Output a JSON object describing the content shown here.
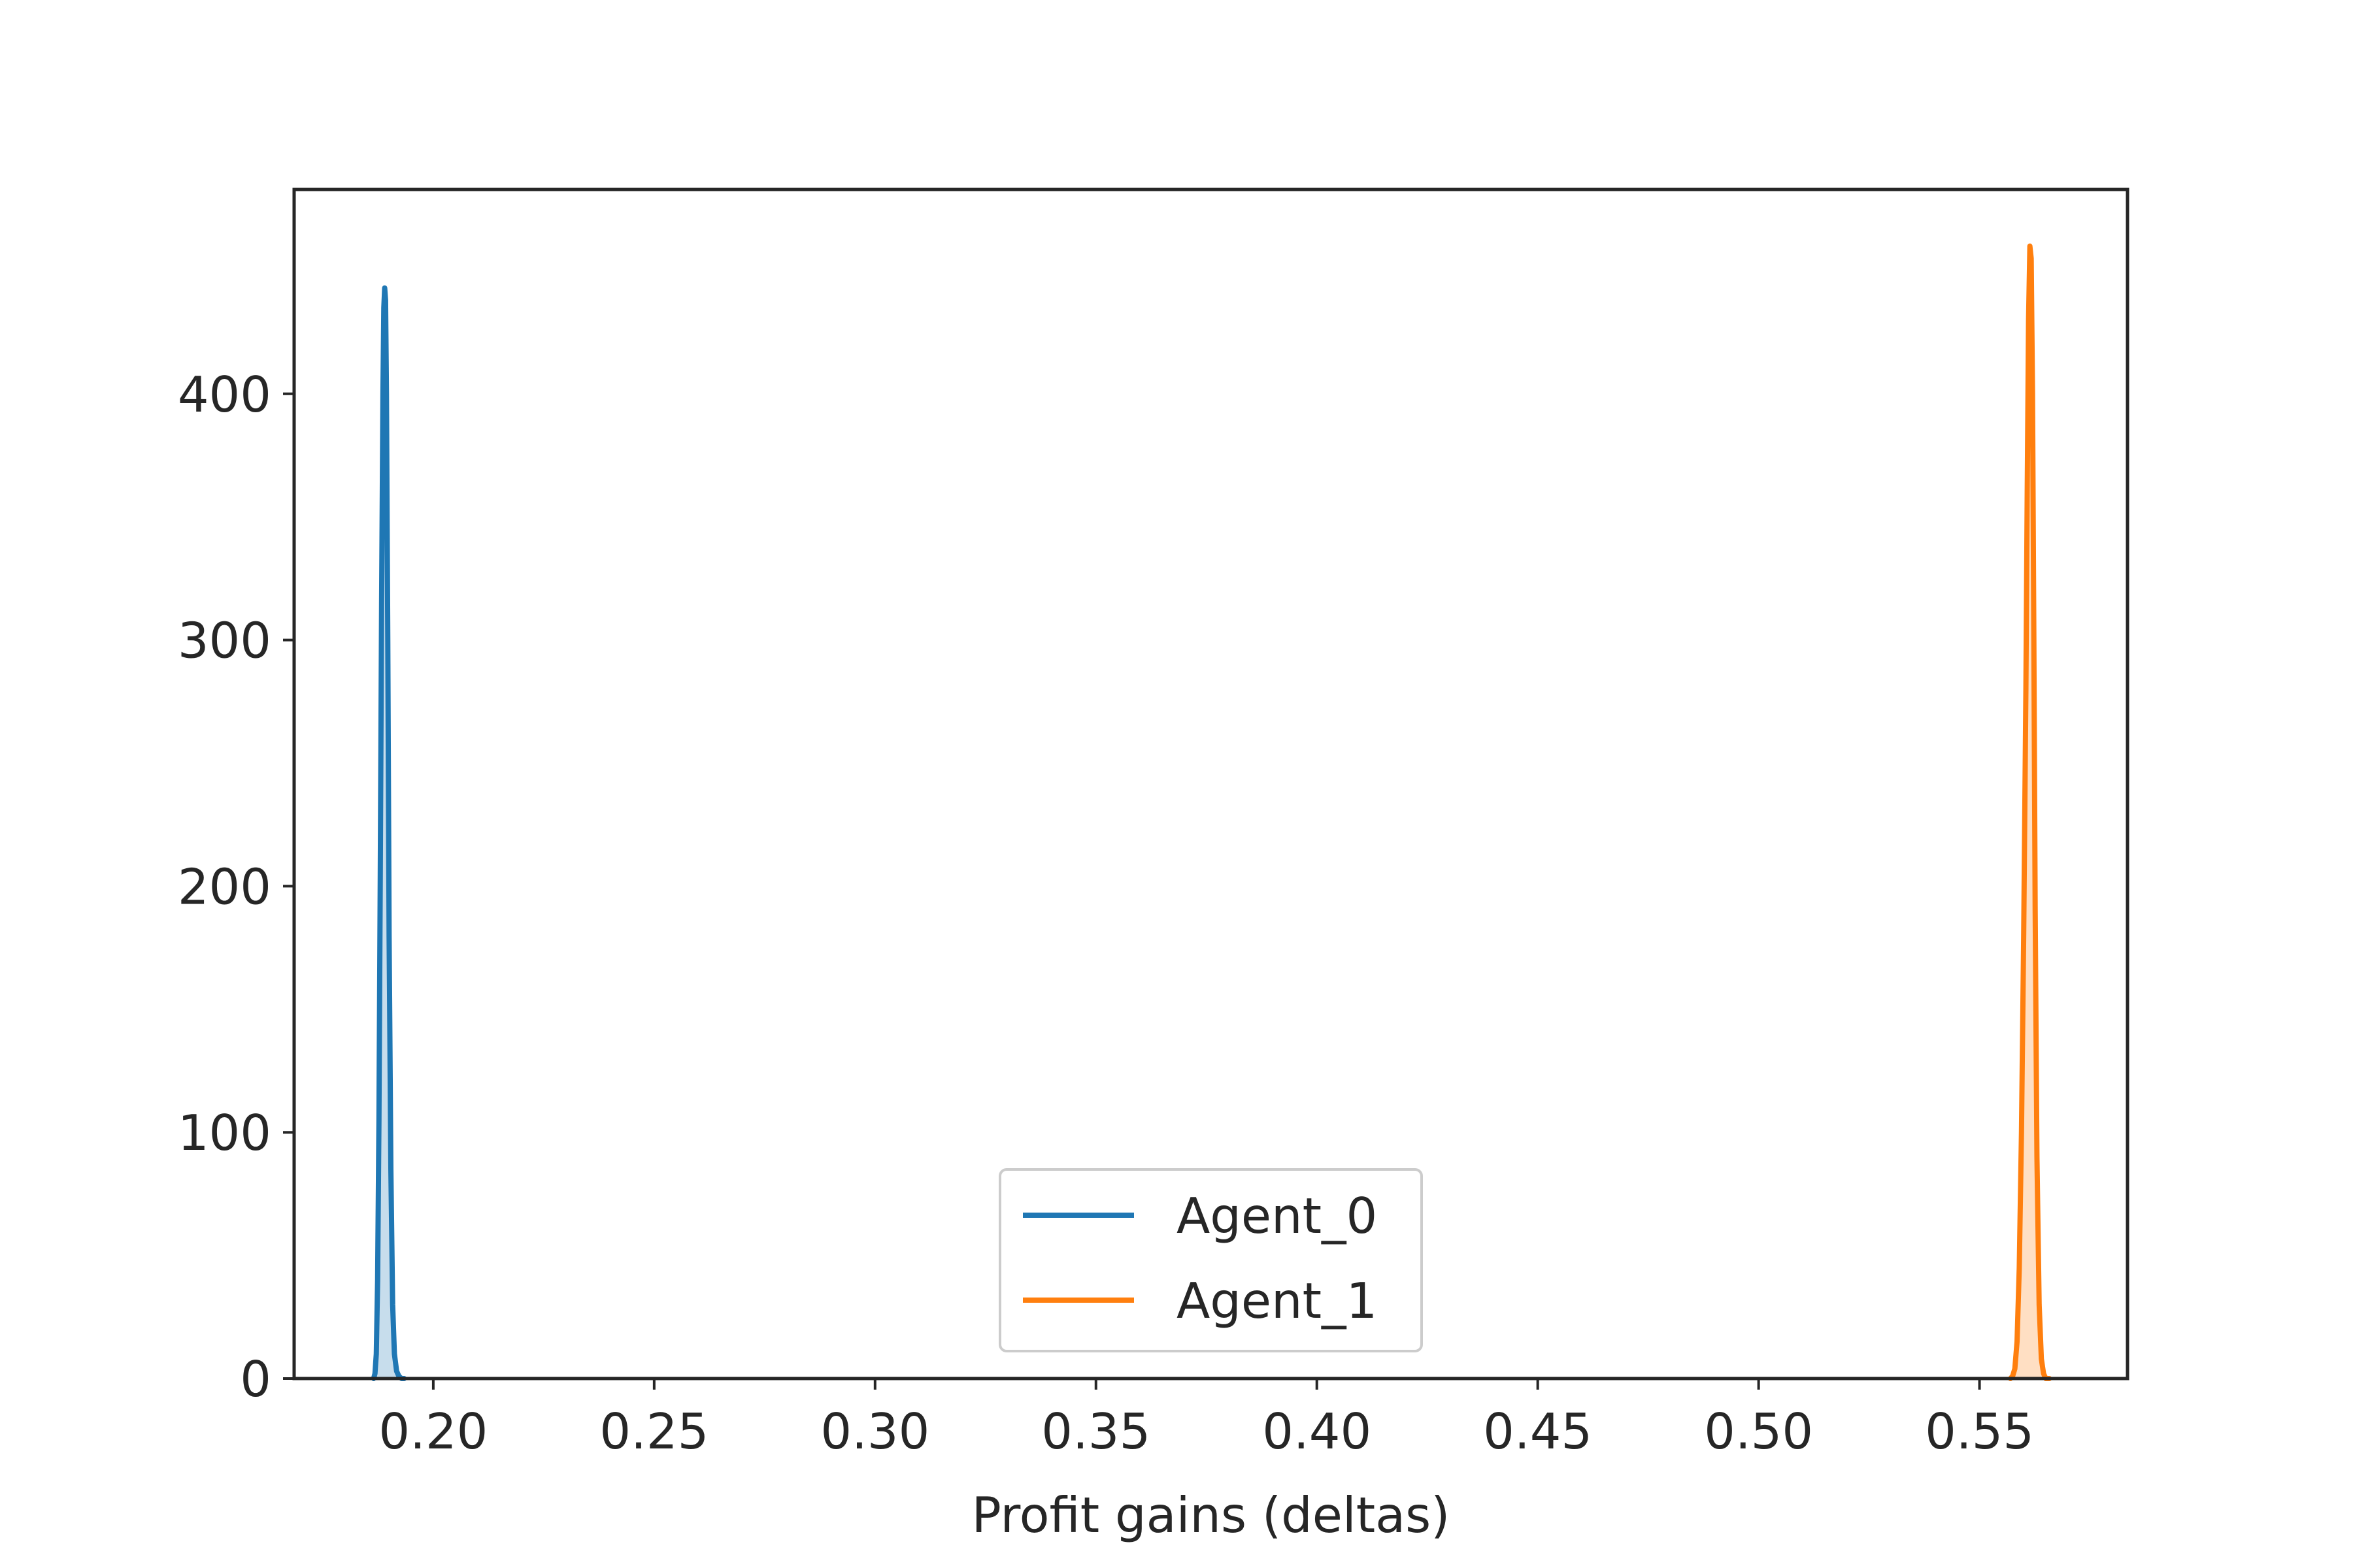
{
  "chart_data": {
    "type": "area",
    "title": "",
    "xlabel": "Profit gains (deltas)",
    "ylabel": "",
    "xlim": [
      0.1685,
      0.5835
    ],
    "ylim": [
      0,
      483
    ],
    "xticks": [
      0.2,
      0.25,
      0.3,
      0.35,
      0.4,
      0.45,
      0.5,
      0.55
    ],
    "xtick_labels": [
      "0.20",
      "0.25",
      "0.30",
      "0.35",
      "0.40",
      "0.45",
      "0.50",
      "0.55"
    ],
    "yticks": [
      0,
      100,
      200,
      300,
      400
    ],
    "ytick_labels": [
      "0",
      "100",
      "200",
      "300",
      "400"
    ],
    "grid": false,
    "legend_position": "lower-center",
    "series": [
      {
        "name": "Agent_0",
        "color": "#1f77b4",
        "x": [
          0.1865,
          0.1868,
          0.1871,
          0.1874,
          0.1877,
          0.188,
          0.1883,
          0.1886,
          0.1888,
          0.189,
          0.1892,
          0.1894,
          0.1897,
          0.19,
          0.1904,
          0.1908,
          0.1912,
          0.1917,
          0.1922,
          0.1928,
          0.1934
        ],
        "y": [
          0,
          2,
          10,
          40,
          105,
          205,
          315,
          400,
          435,
          443,
          438,
          400,
          300,
          180,
          85,
          30,
          10,
          3,
          1,
          0,
          0
        ]
      },
      {
        "name": "Agent_1",
        "color": "#ff7f0e",
        "x": [
          0.557,
          0.5575,
          0.558,
          0.5585,
          0.559,
          0.5595,
          0.56,
          0.5605,
          0.5608,
          0.5611,
          0.5614,
          0.5617,
          0.562,
          0.5623,
          0.5626,
          0.563,
          0.5635,
          0.564,
          0.5645,
          0.565,
          0.5658
        ],
        "y": [
          0,
          1,
          4,
          15,
          45,
          100,
          180,
          280,
          360,
          430,
          460,
          455,
          400,
          300,
          190,
          90,
          30,
          8,
          2,
          0,
          0
        ]
      }
    ]
  }
}
